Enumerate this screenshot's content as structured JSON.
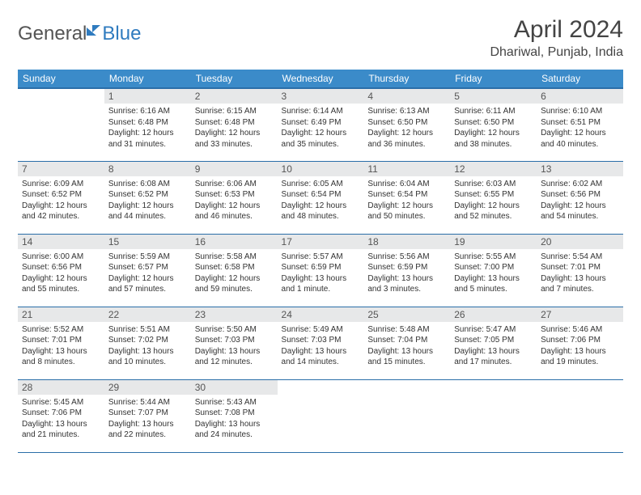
{
  "brand": {
    "word1": "General",
    "word2": "Blue"
  },
  "title": "April 2024",
  "location": "Dhariwal, Punjab, India",
  "colors": {
    "header_bg": "#3b8bc9",
    "header_border": "#2a6ea8",
    "daynum_bg": "#e7e8e9",
    "brand_blue": "#2f7bbf"
  },
  "daynames": [
    "Sunday",
    "Monday",
    "Tuesday",
    "Wednesday",
    "Thursday",
    "Friday",
    "Saturday"
  ],
  "weeks": [
    [
      {
        "n": "",
        "body": ""
      },
      {
        "n": "1",
        "body": "Sunrise: 6:16 AM\nSunset: 6:48 PM\nDaylight: 12 hours and 31 minutes."
      },
      {
        "n": "2",
        "body": "Sunrise: 6:15 AM\nSunset: 6:48 PM\nDaylight: 12 hours and 33 minutes."
      },
      {
        "n": "3",
        "body": "Sunrise: 6:14 AM\nSunset: 6:49 PM\nDaylight: 12 hours and 35 minutes."
      },
      {
        "n": "4",
        "body": "Sunrise: 6:13 AM\nSunset: 6:50 PM\nDaylight: 12 hours and 36 minutes."
      },
      {
        "n": "5",
        "body": "Sunrise: 6:11 AM\nSunset: 6:50 PM\nDaylight: 12 hours and 38 minutes."
      },
      {
        "n": "6",
        "body": "Sunrise: 6:10 AM\nSunset: 6:51 PM\nDaylight: 12 hours and 40 minutes."
      }
    ],
    [
      {
        "n": "7",
        "body": "Sunrise: 6:09 AM\nSunset: 6:52 PM\nDaylight: 12 hours and 42 minutes."
      },
      {
        "n": "8",
        "body": "Sunrise: 6:08 AM\nSunset: 6:52 PM\nDaylight: 12 hours and 44 minutes."
      },
      {
        "n": "9",
        "body": "Sunrise: 6:06 AM\nSunset: 6:53 PM\nDaylight: 12 hours and 46 minutes."
      },
      {
        "n": "10",
        "body": "Sunrise: 6:05 AM\nSunset: 6:54 PM\nDaylight: 12 hours and 48 minutes."
      },
      {
        "n": "11",
        "body": "Sunrise: 6:04 AM\nSunset: 6:54 PM\nDaylight: 12 hours and 50 minutes."
      },
      {
        "n": "12",
        "body": "Sunrise: 6:03 AM\nSunset: 6:55 PM\nDaylight: 12 hours and 52 minutes."
      },
      {
        "n": "13",
        "body": "Sunrise: 6:02 AM\nSunset: 6:56 PM\nDaylight: 12 hours and 54 minutes."
      }
    ],
    [
      {
        "n": "14",
        "body": "Sunrise: 6:00 AM\nSunset: 6:56 PM\nDaylight: 12 hours and 55 minutes."
      },
      {
        "n": "15",
        "body": "Sunrise: 5:59 AM\nSunset: 6:57 PM\nDaylight: 12 hours and 57 minutes."
      },
      {
        "n": "16",
        "body": "Sunrise: 5:58 AM\nSunset: 6:58 PM\nDaylight: 12 hours and 59 minutes."
      },
      {
        "n": "17",
        "body": "Sunrise: 5:57 AM\nSunset: 6:59 PM\nDaylight: 13 hours and 1 minute."
      },
      {
        "n": "18",
        "body": "Sunrise: 5:56 AM\nSunset: 6:59 PM\nDaylight: 13 hours and 3 minutes."
      },
      {
        "n": "19",
        "body": "Sunrise: 5:55 AM\nSunset: 7:00 PM\nDaylight: 13 hours and 5 minutes."
      },
      {
        "n": "20",
        "body": "Sunrise: 5:54 AM\nSunset: 7:01 PM\nDaylight: 13 hours and 7 minutes."
      }
    ],
    [
      {
        "n": "21",
        "body": "Sunrise: 5:52 AM\nSunset: 7:01 PM\nDaylight: 13 hours and 8 minutes."
      },
      {
        "n": "22",
        "body": "Sunrise: 5:51 AM\nSunset: 7:02 PM\nDaylight: 13 hours and 10 minutes."
      },
      {
        "n": "23",
        "body": "Sunrise: 5:50 AM\nSunset: 7:03 PM\nDaylight: 13 hours and 12 minutes."
      },
      {
        "n": "24",
        "body": "Sunrise: 5:49 AM\nSunset: 7:03 PM\nDaylight: 13 hours and 14 minutes."
      },
      {
        "n": "25",
        "body": "Sunrise: 5:48 AM\nSunset: 7:04 PM\nDaylight: 13 hours and 15 minutes."
      },
      {
        "n": "26",
        "body": "Sunrise: 5:47 AM\nSunset: 7:05 PM\nDaylight: 13 hours and 17 minutes."
      },
      {
        "n": "27",
        "body": "Sunrise: 5:46 AM\nSunset: 7:06 PM\nDaylight: 13 hours and 19 minutes."
      }
    ],
    [
      {
        "n": "28",
        "body": "Sunrise: 5:45 AM\nSunset: 7:06 PM\nDaylight: 13 hours and 21 minutes."
      },
      {
        "n": "29",
        "body": "Sunrise: 5:44 AM\nSunset: 7:07 PM\nDaylight: 13 hours and 22 minutes."
      },
      {
        "n": "30",
        "body": "Sunrise: 5:43 AM\nSunset: 7:08 PM\nDaylight: 13 hours and 24 minutes."
      },
      {
        "n": "",
        "body": ""
      },
      {
        "n": "",
        "body": ""
      },
      {
        "n": "",
        "body": ""
      },
      {
        "n": "",
        "body": ""
      }
    ]
  ]
}
